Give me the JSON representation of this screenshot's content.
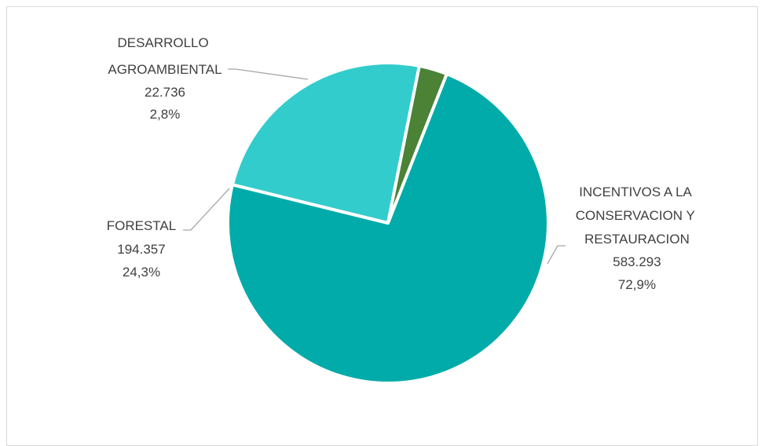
{
  "chart_data": {
    "type": "pie",
    "title": "",
    "slices": [
      {
        "key": "incentivos",
        "label_lines": [
          "INCENTIVOS A LA",
          "CONSERVACION Y",
          "RESTAURACION"
        ],
        "value_text": "583.293",
        "value": 583293,
        "percent_text": "72,9%",
        "percent": 72.9,
        "color": "#00ABA9"
      },
      {
        "key": "forestal",
        "label_lines": [
          "FORESTAL"
        ],
        "value_text": "194.357",
        "value": 194357,
        "percent_text": "24,3%",
        "percent": 24.3,
        "color": "#33CCCC"
      },
      {
        "key": "desarrollo",
        "label_lines": [
          "DESARROLLO",
          "AGROAMBIENTAL"
        ],
        "value_text": "22.736",
        "value": 22736,
        "percent_text": "2,8%",
        "percent": 2.8,
        "color": "#4B8236"
      }
    ],
    "legend": "none",
    "data_labels": "outside with leader lines"
  }
}
